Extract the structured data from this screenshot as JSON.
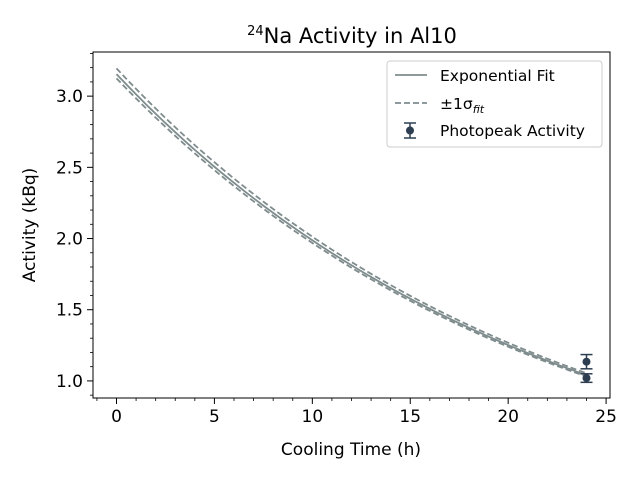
{
  "chart_data": {
    "type": "line",
    "title": {
      "isotope_mass": "24",
      "main": "Na Activity in Al10"
    },
    "xlabel": "Cooling Time (h)",
    "ylabel": "Activity (kBq)",
    "xlim": [
      -1.2,
      25.2
    ],
    "ylim": [
      0.88,
      3.31
    ],
    "x_ticks": [
      0,
      5,
      10,
      15,
      20,
      25
    ],
    "y_ticks": [
      1.0,
      1.5,
      2.0,
      2.5,
      3.0
    ],
    "x_minor_step": 1,
    "y_minor_step": 0.1,
    "grid": false,
    "legend_position": "top-right",
    "fit": {
      "model": "exponential",
      "x_range": [
        0,
        24
      ],
      "A0": 3.155,
      "half_life_h": 15.0,
      "sigma_upper_A0": 3.195,
      "sigma_lower_A0": 3.125
    },
    "series": [
      {
        "name": "Exponential Fit",
        "style": "solid",
        "color": "#7f8c8d"
      },
      {
        "name": "±1σ",
        "name_subscript": "fit",
        "style": "dashed",
        "color": "#7f8c8d"
      },
      {
        "name": "Photopeak Activity",
        "style": "errorbar",
        "color": "#2c3e50",
        "points": [
          {
            "x": 24.0,
            "y": 1.135,
            "err": 0.05
          },
          {
            "x": 24.0,
            "y": 1.02,
            "err": 0.03
          }
        ]
      }
    ]
  }
}
